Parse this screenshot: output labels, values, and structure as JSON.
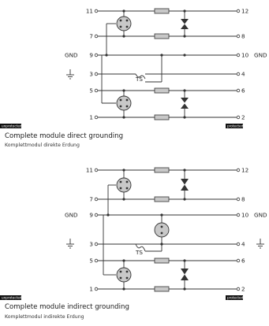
{
  "diagrams": [
    {
      "pins_left": [
        "11",
        "7",
        "9",
        "3",
        "5",
        "1"
      ],
      "pins_right": [
        "12",
        "8",
        "10",
        "4",
        "6",
        "2"
      ],
      "gnd_left": "GND",
      "gnd_right": "GND",
      "ts_label": "TS",
      "tag_left": "unprotected",
      "tag_right": "protected",
      "title": "Complete module direct grounding",
      "subtitle": "Komplettmodul direkte Erdung"
    },
    {
      "pins_left": [
        "11",
        "7",
        "9",
        "3",
        "5",
        "1"
      ],
      "pins_right": [
        "12",
        "8",
        "10",
        "4",
        "6",
        "2"
      ],
      "gnd_left": "GND",
      "gnd_right": "GND",
      "ts_label": "TS",
      "tag_left": "unprotected",
      "tag_right": "protected",
      "title": "Complete module indirect grounding",
      "subtitle": "Komplettmodul indirekte Erdung"
    }
  ],
  "colors": {
    "line": "#333333",
    "component_fill": "#c8c8c8",
    "tag_bg": "#111111"
  }
}
